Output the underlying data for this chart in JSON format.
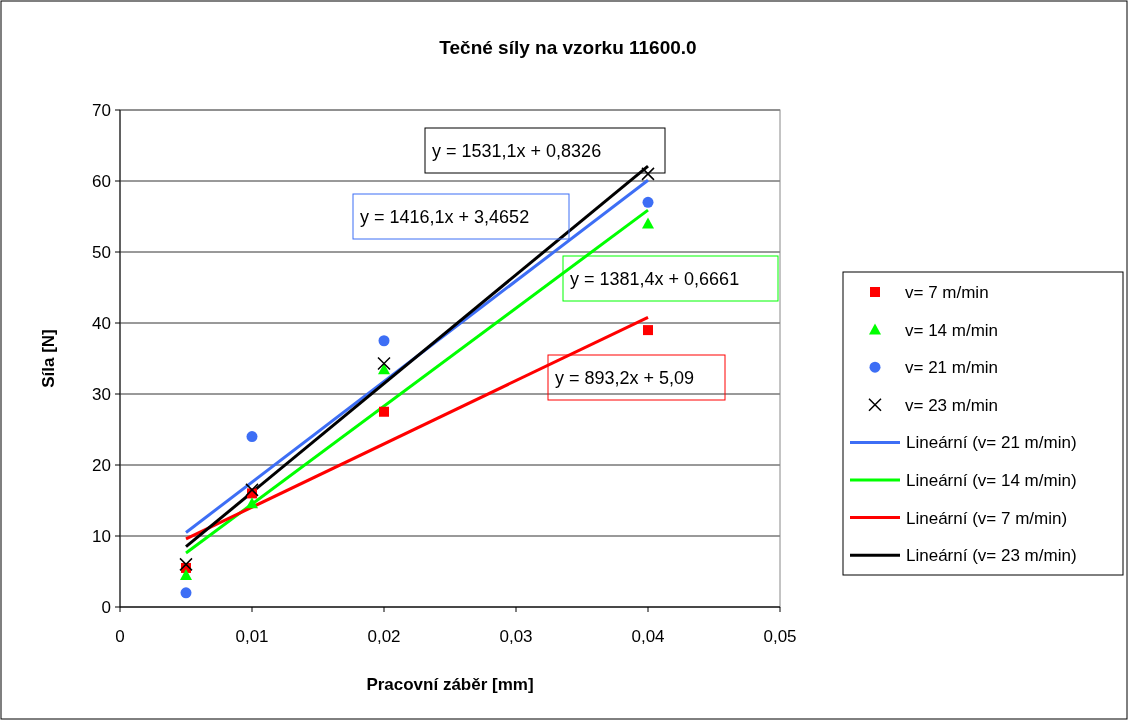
{
  "chart_data": {
    "type": "scatter",
    "title": "Tečné síly na vzorku 11600.0",
    "xlabel": "Pracovní záběr [mm]",
    "ylabel": "Síla [N]",
    "x": [
      0.005,
      0.01,
      0.02,
      0.04
    ],
    "xlim": [
      0,
      0.05
    ],
    "xticks": [
      {
        "value": 0,
        "label": "0"
      },
      {
        "value": 0.01,
        "label": "0,01"
      },
      {
        "value": 0.02,
        "label": "0,02"
      },
      {
        "value": 0.03,
        "label": "0,03"
      },
      {
        "value": 0.04,
        "label": "0,04"
      },
      {
        "value": 0.05,
        "label": "0,05"
      }
    ],
    "ylim": [
      0,
      70
    ],
    "yticks": [
      0,
      10,
      20,
      30,
      40,
      50,
      60,
      70
    ],
    "grid": "y",
    "legend": "right",
    "series": [
      {
        "name": "v= 7 m/min",
        "color": "#ff0000",
        "marker": "square",
        "values": [
          5.5,
          16,
          27.5,
          39
        ]
      },
      {
        "name": "v= 14 m/min",
        "color": "#00ff00",
        "marker": "triangle",
        "values": [
          4.5,
          14.6,
          33.5,
          54
        ]
      },
      {
        "name": "v= 21 m/min",
        "color": "#3d6ef5",
        "marker": "circle",
        "values": [
          2,
          24,
          37.5,
          57
        ]
      },
      {
        "name": "v= 23 m/min",
        "color": "#000000",
        "marker": "cross",
        "values": [
          6,
          16.5,
          34.3,
          61
        ]
      },
      {
        "name": "Lineární (v= 21 m/min)",
        "type": "line",
        "color": "#3d6ef5",
        "values": [
          10.5,
          null,
          null,
          60.1
        ]
      },
      {
        "name": "Lineární (v= 14 m/min)",
        "type": "line",
        "color": "#00ff00",
        "values": [
          7.6,
          null,
          null,
          55.9
        ]
      },
      {
        "name": "Lineární (v= 7 m/min)",
        "type": "line",
        "color": "#ff0000",
        "values": [
          9.6,
          null,
          null,
          40.8
        ]
      },
      {
        "name": "Lineární (v= 23 m/min)",
        "type": "line",
        "color": "#000000",
        "values": [
          8.5,
          null,
          null,
          62.1
        ]
      }
    ],
    "annotations": [
      "y = 1531,1x + 0,8326",
      "y = 1416,1x + 3,4652",
      "y = 1381,4x + 0,6661",
      "y = 893,2x + 5,09"
    ]
  }
}
